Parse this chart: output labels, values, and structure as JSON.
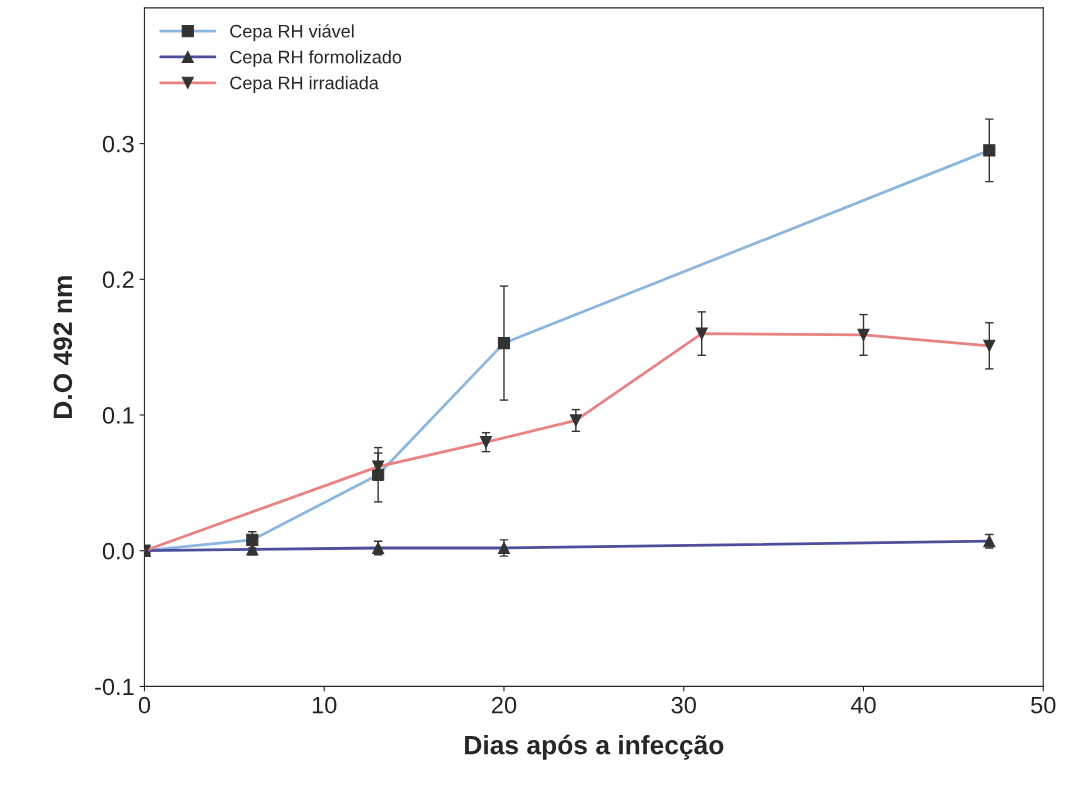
{
  "chart_data": {
    "type": "line",
    "xlabel": "Dias após a infecção",
    "ylabel": "D.O 492 nm",
    "xlim": [
      0,
      50
    ],
    "xticks": [
      0,
      10,
      20,
      30,
      40,
      50
    ],
    "ylim": [
      -0.1,
      0.4
    ],
    "yticks": [
      {
        "value": -0.1,
        "label": "-0.1"
      },
      {
        "value": 0.0,
        "label": "0.0"
      },
      {
        "value": 0.1,
        "label": "0.1"
      },
      {
        "value": 0.2,
        "label": "0.2"
      },
      {
        "value": 0.3,
        "label": "0.3"
      }
    ],
    "legend": "top left",
    "grid": false,
    "series": [
      {
        "name": "Cepa RH viável",
        "color": "#8db6de",
        "marker": "square",
        "x": [
          0,
          6,
          13,
          20,
          47
        ],
        "values": [
          0,
          0.008,
          0.056,
          0.153,
          0.295
        ],
        "errors": [
          null,
          0.006,
          0.02,
          0.042,
          0.023
        ]
      },
      {
        "name": "Cepa RH formolizado",
        "color": "#4b4f9c",
        "marker": "triangle",
        "x": [
          0,
          6,
          13,
          20,
          47
        ],
        "values": [
          0,
          0.001,
          0.002,
          0.002,
          0.007
        ],
        "errors": [
          null,
          0.004,
          0.005,
          0.006,
          0.005
        ]
      },
      {
        "name": "Cepa RH irradiada",
        "color": "#e98282",
        "marker": "triangle_down",
        "x": [
          0,
          13,
          19,
          24,
          31,
          40,
          47
        ],
        "values": [
          0,
          0.062,
          0.08,
          0.096,
          0.16,
          0.159,
          0.151
        ],
        "errors": [
          null,
          0.01,
          0.007,
          0.008,
          0.016,
          0.015,
          0.017
        ]
      }
    ]
  }
}
